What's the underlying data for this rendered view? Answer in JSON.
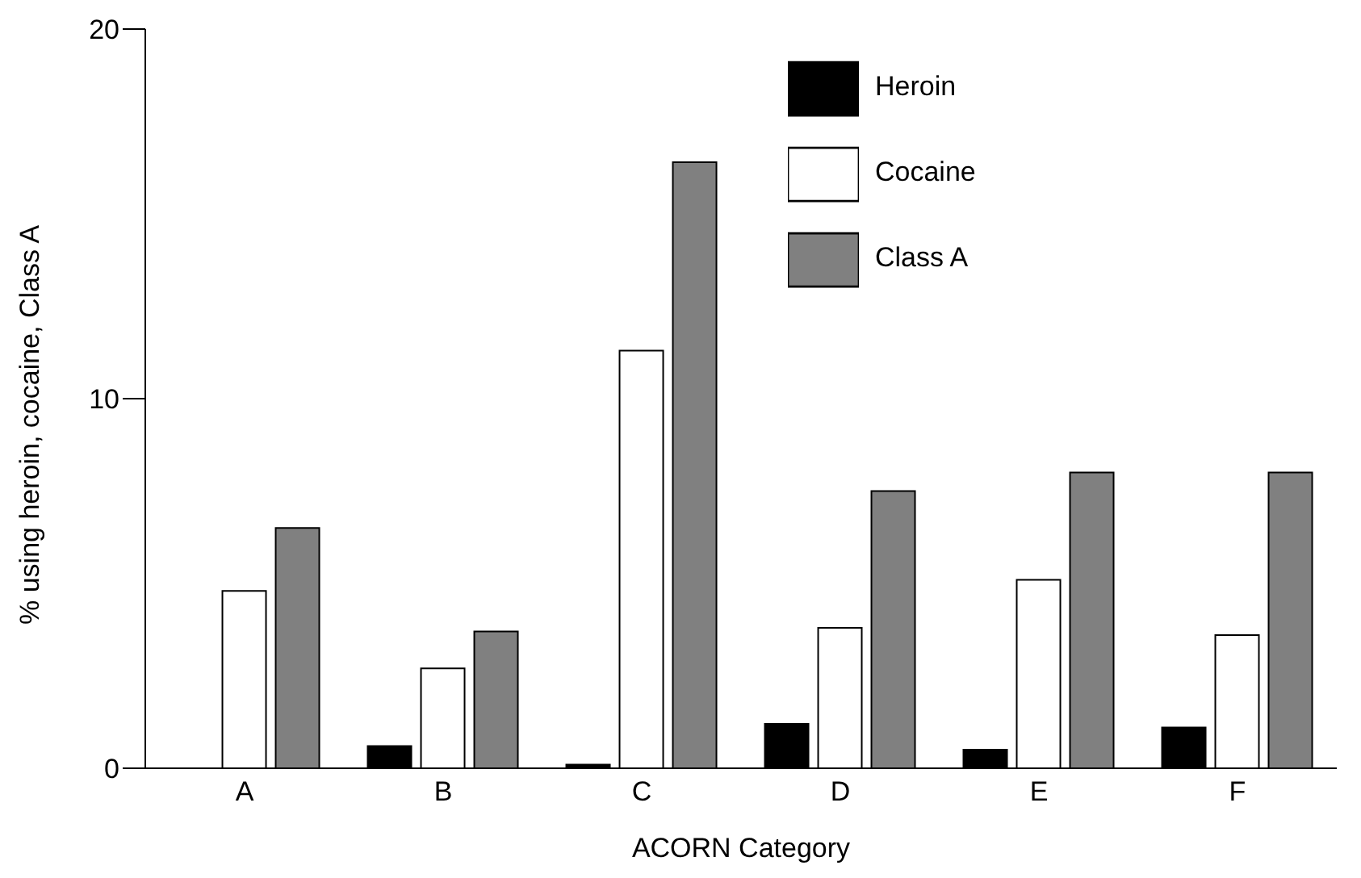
{
  "chart_data": {
    "type": "bar",
    "xlabel": "ACORN Category",
    "ylabel": "% using heroin, cocaine, Class A",
    "categories": [
      "A",
      "B",
      "C",
      "D",
      "E",
      "F"
    ],
    "series": [
      {
        "name": "Heroin",
        "color": "#000000",
        "values": [
          0,
          0.6,
          0.1,
          1.2,
          0.5,
          1.1
        ]
      },
      {
        "name": "Cocaine",
        "color": "#ffffff",
        "values": [
          4.8,
          2.7,
          11.3,
          3.8,
          5.1,
          3.6
        ]
      },
      {
        "name": "Class A",
        "color": "#808080",
        "values": [
          6.5,
          3.7,
          16.4,
          7.5,
          8.0,
          8.0
        ]
      }
    ],
    "ylim": [
      0,
      20
    ],
    "yticks": [
      0,
      10,
      20
    ],
    "grid": false,
    "legend": "top right"
  }
}
